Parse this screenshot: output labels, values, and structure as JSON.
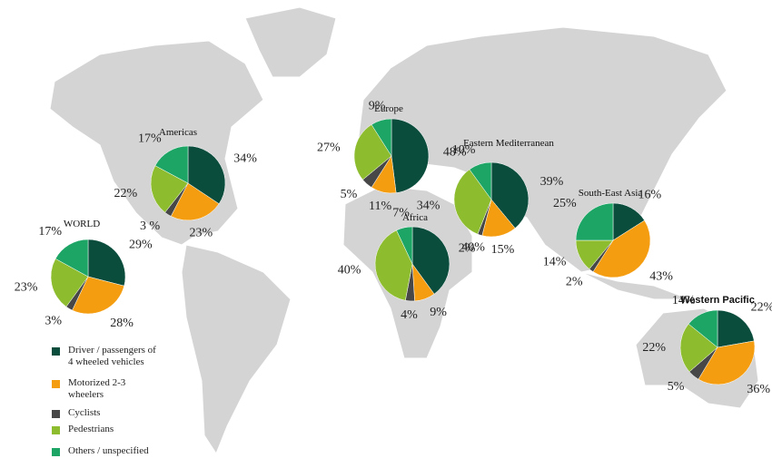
{
  "legend": {
    "categories": [
      "Driver / passengers of 4 wheeled vehicles",
      "Motorized 2-3 wheelers",
      "Cyclists",
      "Pedestrians",
      "Others / unspecified"
    ],
    "colors": [
      "#0b4d3d",
      "#f59d10",
      "#474747",
      "#8dbd2e",
      "#1da566"
    ]
  },
  "pies": [
    {
      "title": "WORLD",
      "values": [
        29,
        28,
        3,
        23,
        17
      ],
      "value_labels": [
        "29%",
        "28%",
        "3%",
        "23%",
        "17%"
      ]
    },
    {
      "title": "Americas",
      "values": [
        34,
        23,
        3,
        22,
        17
      ],
      "value_labels": [
        "34%",
        "23%",
        "3 %",
        "22%",
        "17%"
      ]
    },
    {
      "title": "Europe",
      "values": [
        48,
        11,
        5,
        27,
        9
      ],
      "value_labels": [
        "48%",
        "11%",
        "5%",
        "27%",
        "9%"
      ]
    },
    {
      "title": "Eastern Mediterranean",
      "values": [
        39,
        15,
        2,
        34,
        10
      ],
      "value_labels": [
        "39%",
        "15%",
        "2%",
        "34%",
        "10%"
      ]
    },
    {
      "title": "Africa",
      "values": [
        40,
        9,
        4,
        40,
        7
      ],
      "value_labels": [
        "40%",
        "9%",
        "4%",
        "40%",
        "7%"
      ]
    },
    {
      "title": "South-East Asia",
      "values": [
        16,
        43,
        2,
        14,
        25
      ],
      "value_labels": [
        "16%",
        "43%",
        "2%",
        "14%",
        "25%"
      ]
    },
    {
      "title": "Western Pacific",
      "values": [
        22,
        36,
        5,
        22,
        14
      ],
      "value_labels": [
        "22%",
        "36%",
        "5%",
        "22%",
        "14%"
      ]
    }
  ]
}
